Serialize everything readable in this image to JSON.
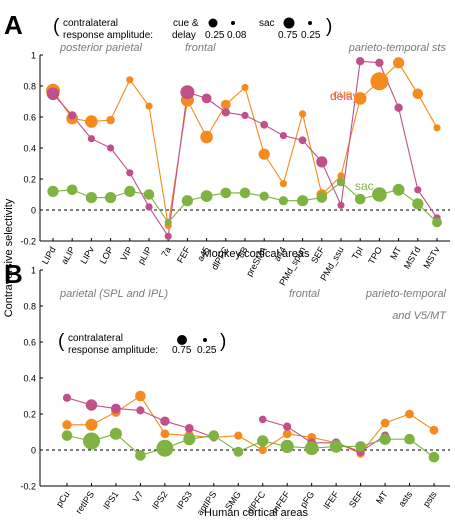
{
  "colors": {
    "cue": "#F58A1F",
    "delay": "#C0508A",
    "sac": "#7FB241",
    "axis": "#000000",
    "region": "#7A7A7A"
  },
  "figure": {
    "ylabel": "Contraversive selectivity"
  },
  "chart_data": [
    {
      "panel": "A",
      "type": "line",
      "xlabel": "Monkey cortical areas",
      "ylabel": "Contraversive selectivity",
      "ylim": [
        -0.2,
        1.0
      ],
      "yticks": [
        -0.2,
        0,
        0.2,
        0.4,
        0.6,
        0.8,
        1
      ],
      "ytick_labels": [
        "-0.2",
        "0",
        "0.2",
        "0.4",
        "0.6",
        "0.8",
        "1"
      ],
      "grid": false,
      "zero_line": "dashed",
      "categories": [
        "LIPd",
        "aLIP",
        "LIPv",
        "LOP",
        "VIP",
        "pLIP",
        "7a",
        "FEF",
        "a45",
        "dlPFC",
        "8B",
        "preSMA",
        "a44",
        "PMd_spun",
        "SEF",
        "PMd_ssu",
        "TpI",
        "TPO",
        "MT",
        "MSTd",
        "MSTv"
      ],
      "region_labels": [
        "posterior parietal",
        "frontal",
        "parieto-temporal sts"
      ],
      "series": [
        {
          "name": "cue",
          "color_key": "cue",
          "values": [
            0.77,
            0.59,
            0.57,
            0.58,
            0.84,
            0.67,
            -0.1,
            0.71,
            0.47,
            0.68,
            0.79,
            0.36,
            0.17,
            0.62,
            0.1,
            0.22,
            0.72,
            0.83,
            0.95,
            0.75,
            0.53
          ],
          "sizes": [
            0.7,
            0.55,
            0.6,
            0.3,
            0.2,
            0.2,
            0.2,
            0.65,
            0.6,
            0.4,
            0.2,
            0.5,
            0.2,
            0.2,
            0.45,
            0.2,
            0.6,
            1.0,
            0.5,
            0.45,
            0.2
          ]
        },
        {
          "name": "delay",
          "color_key": "delay",
          "values": [
            0.75,
            0.61,
            0.46,
            0.4,
            0.24,
            0.02,
            -0.17,
            0.76,
            0.72,
            0.63,
            0.61,
            0.55,
            0.48,
            0.45,
            0.31,
            0.03,
            0.96,
            0.95,
            0.66,
            0.13,
            -0.05
          ],
          "sizes": [
            0.6,
            0.3,
            0.2,
            0.2,
            0.2,
            0.2,
            0.2,
            0.7,
            0.4,
            0.3,
            0.2,
            0.25,
            0.2,
            0.25,
            0.5,
            0.2,
            0.3,
            0.3,
            0.3,
            0.2,
            0.2
          ]
        },
        {
          "name": "sac",
          "color_key": "sac",
          "values": [
            0.12,
            0.13,
            0.08,
            0.08,
            0.12,
            0.1,
            -0.08,
            0.06,
            0.09,
            0.11,
            0.11,
            0.09,
            0.06,
            0.06,
            0.08,
            0.18,
            0.07,
            0.1,
            0.13,
            0.04,
            -0.08
          ],
          "sizes": [
            0.5,
            0.45,
            0.5,
            0.5,
            0.5,
            0.45,
            0.2,
            0.5,
            0.55,
            0.45,
            0.45,
            0.35,
            0.35,
            0.5,
            0.45,
            0.3,
            0.45,
            0.75,
            0.55,
            0.5,
            0.4
          ]
        }
      ],
      "legend": {
        "line1_prefix": "contralateral",
        "line2_prefix": "response amplitude:",
        "group1_title": "cue &",
        "group1_title2": "delay",
        "group1_values": [
          "0.25",
          "0.08"
        ],
        "group2_title": "sac",
        "group2_values": [
          "0.75",
          "0.25"
        ]
      }
    },
    {
      "panel": "B",
      "type": "line",
      "xlabel": "Human cortical areas",
      "ylim": [
        -0.2,
        1.0
      ],
      "yticks": [
        -0.2,
        0,
        0.2,
        0.4,
        0.6,
        0.8,
        1
      ],
      "ytick_labels": [
        "-0.2",
        "0",
        "0.2",
        "0.4",
        "0.6",
        "0.8",
        "1"
      ],
      "grid": false,
      "zero_line": "dashed",
      "categories": [
        "pCu",
        "retIPS",
        "IPS1",
        "V7",
        "IPS2",
        "IPS3",
        "antIPS",
        "SMG",
        "dlPFC",
        "mFEF",
        "pFG",
        "lFEF",
        "SEF",
        "MT",
        "asts",
        "psts"
      ],
      "region_labels": [
        "parietal (SPL and IPL)",
        "frontal",
        "parieto-temporal",
        "and V5/MT"
      ],
      "series": [
        {
          "name": "cue",
          "color_key": "cue",
          "values": [
            0.14,
            0.14,
            0.21,
            0.3,
            0.09,
            0.08,
            0.07,
            0.08,
            0.0,
            0.09,
            0.07,
            0.04,
            -0.02,
            0.15,
            0.2,
            0.11
          ],
          "sizes": [
            0.4,
            0.6,
            0.4,
            0.5,
            0.35,
            0.4,
            0.3,
            0.3,
            0.3,
            0.35,
            0.35,
            0.3,
            0.3,
            0.35,
            0.35,
            0.35
          ]
        },
        {
          "name": "delay",
          "color_key": "delay",
          "values": [
            0.29,
            0.25,
            0.23,
            0.22,
            0.16,
            0.12,
            0.07,
            null,
            0.17,
            0.13,
            0.04,
            0.04,
            -0.01,
            0.08,
            null,
            null
          ],
          "sizes": [
            0.3,
            0.55,
            0.45,
            0.3,
            0.4,
            0.35,
            0.3,
            0.3,
            0.25,
            0.3,
            0.35,
            0.35,
            0.3,
            0.3,
            0.3,
            0.3
          ]
        },
        {
          "name": "sac",
          "color_key": "sac",
          "values": [
            0.08,
            0.05,
            0.09,
            -0.03,
            0.01,
            0.06,
            0.08,
            -0.01,
            0.05,
            0.02,
            0.01,
            0.02,
            0.02,
            0.06,
            0.06,
            -0.04
          ],
          "sizes": [
            0.5,
            1.0,
            0.6,
            0.5,
            1.0,
            0.6,
            0.5,
            0.45,
            0.55,
            0.7,
            0.75,
            0.65,
            0.5,
            0.55,
            0.5,
            0.5
          ]
        }
      ],
      "legend": {
        "line1_prefix": "contralateral",
        "line2_prefix": "response amplitude:",
        "values": [
          "0.75",
          "0.25"
        ]
      }
    }
  ]
}
